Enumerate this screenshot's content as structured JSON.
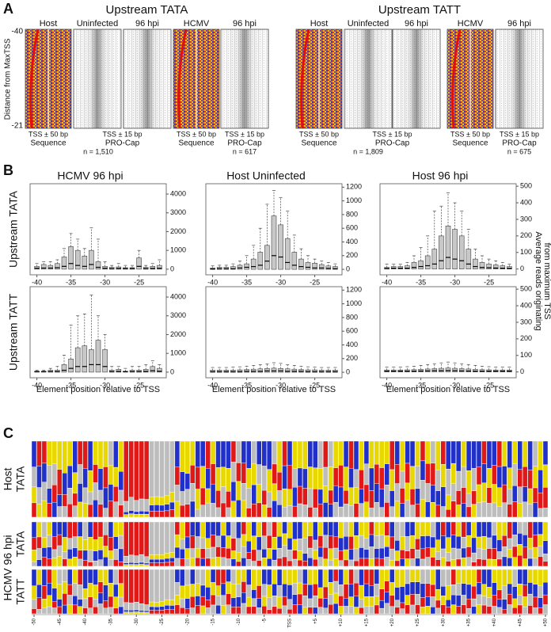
{
  "panel_a": {
    "label": "A",
    "yticks": [
      -40,
      -21
    ],
    "y_title": "Distance from MaxTSS",
    "seq_label": [
      "TSS ± 50 bp",
      "Sequence"
    ],
    "cap_label": [
      "TSS ± 15 bp",
      "PRO-Cap"
    ],
    "groups": [
      {
        "title": "Upstream TATA",
        "sets": [
          {
            "seq_header": "Host",
            "cap_headers": [
              "Uninfected",
              "96 hpi"
            ],
            "n": "n = 1,510"
          },
          {
            "seq_header": "HCMV",
            "cap_headers": [
              "96 hpi"
            ],
            "n": "n = 617"
          }
        ]
      },
      {
        "title": "Upstream TATT",
        "sets": [
          {
            "seq_header": "Host",
            "cap_headers": [
              "Uninfected",
              "96 hpi"
            ],
            "n": "n = 1,809"
          },
          {
            "seq_header": "HCMV",
            "cap_headers": [
              "96 hpi"
            ],
            "n": "n = 675"
          }
        ]
      }
    ]
  },
  "panel_b": {
    "label": "B",
    "row_labels": [
      "Upstream TATA",
      "Upstream TATT"
    ],
    "x_title": "Element position relative to TSS",
    "y_title": [
      "Average reads originating",
      "from maximum TSS"
    ]
  },
  "chart_data": [
    {
      "type": "box",
      "title": "HCMV 96 hpi",
      "color": "#c8c8c8",
      "x": [
        -40,
        -39,
        -38,
        -37,
        -36,
        -35,
        -34,
        -33,
        -32,
        -31,
        -30,
        -29,
        -28,
        -27,
        -26,
        -25,
        -24,
        -23,
        -22
      ],
      "q1": [
        0,
        0,
        0,
        0,
        0,
        0,
        0,
        0,
        0,
        0,
        0,
        0,
        0,
        0,
        0,
        0,
        0,
        0,
        0
      ],
      "median": [
        50,
        60,
        60,
        80,
        150,
        300,
        200,
        150,
        250,
        100,
        50,
        30,
        40,
        30,
        30,
        150,
        30,
        40,
        50
      ],
      "q3": [
        150,
        250,
        200,
        300,
        650,
        1200,
        1000,
        700,
        1000,
        400,
        150,
        100,
        120,
        80,
        80,
        600,
        100,
        150,
        200
      ],
      "upper": [
        300,
        400,
        400,
        500,
        1100,
        1900,
        1600,
        1100,
        2200,
        1600,
        400,
        200,
        300,
        200,
        200,
        1000,
        200,
        300,
        500
      ],
      "xlim": [
        -41,
        -21
      ],
      "xticks": [
        -40,
        -35,
        -30,
        -25
      ],
      "ylim": [
        -300,
        4550
      ],
      "yticks": [
        0,
        1000,
        2000,
        3000,
        4000
      ]
    },
    {
      "type": "box",
      "title": "Host Uninfected",
      "color": "#c8c8c8",
      "x": [
        -40,
        -39,
        -38,
        -37,
        -36,
        -35,
        -34,
        -33,
        -32,
        -31,
        -30,
        -29,
        -28,
        -27,
        -26,
        -25,
        -24,
        -23,
        -22
      ],
      "q1": [
        0,
        0,
        0,
        0,
        0,
        0,
        0,
        0,
        0,
        0,
        0,
        0,
        0,
        0,
        0,
        0,
        0,
        0,
        0
      ],
      "median": [
        5,
        10,
        10,
        10,
        20,
        30,
        40,
        60,
        120,
        200,
        180,
        100,
        60,
        40,
        30,
        20,
        20,
        15,
        10
      ],
      "q3": [
        20,
        30,
        30,
        40,
        60,
        80,
        150,
        250,
        350,
        780,
        650,
        450,
        250,
        150,
        100,
        90,
        70,
        50,
        40
      ],
      "upper": [
        50,
        60,
        60,
        80,
        120,
        200,
        350,
        600,
        950,
        1150,
        1050,
        850,
        500,
        300,
        200,
        150,
        120,
        100,
        80
      ],
      "xlim": [
        -41,
        -21
      ],
      "xticks": [
        -40,
        -35,
        -30,
        -25
      ],
      "ylim": [
        -80,
        1250
      ],
      "yticks": [
        0,
        200,
        400,
        600,
        800,
        1000,
        1200
      ]
    },
    {
      "type": "box",
      "title": "Host 96 hpi",
      "color": "#c8c8c8",
      "x": [
        -40,
        -39,
        -38,
        -37,
        -36,
        -35,
        -34,
        -33,
        -32,
        -31,
        -30,
        -29,
        -28,
        -27,
        -26,
        -25,
        -24,
        -23,
        -22
      ],
      "q1": [
        0,
        0,
        0,
        0,
        0,
        0,
        0,
        0,
        0,
        0,
        0,
        0,
        0,
        0,
        0,
        0,
        0,
        0,
        0
      ],
      "median": [
        3,
        5,
        5,
        5,
        10,
        15,
        20,
        30,
        50,
        70,
        60,
        50,
        30,
        15,
        10,
        8,
        6,
        5,
        4
      ],
      "q3": [
        10,
        15,
        15,
        20,
        40,
        50,
        80,
        120,
        200,
        260,
        240,
        200,
        120,
        60,
        40,
        30,
        25,
        20,
        15
      ],
      "upper": [
        30,
        30,
        30,
        40,
        80,
        130,
        200,
        350,
        380,
        460,
        400,
        350,
        240,
        120,
        80,
        60,
        50,
        40,
        30
      ],
      "xlim": [
        -41,
        -21
      ],
      "xticks": [
        -40,
        -35,
        -30,
        -25
      ],
      "ylim": [
        -35,
        515
      ],
      "yticks": [
        0,
        100,
        200,
        300,
        400,
        500
      ]
    },
    {
      "type": "box",
      "color": "#c8c8c8",
      "x": [
        -40,
        -39,
        -38,
        -37,
        -36,
        -35,
        -34,
        -33,
        -32,
        -31,
        -30,
        -29,
        -28,
        -27,
        -26,
        -25,
        -24,
        -23,
        -22
      ],
      "q1": [
        0,
        0,
        0,
        0,
        0,
        0,
        0,
        0,
        0,
        0,
        0,
        0,
        0,
        0,
        0,
        0,
        0,
        0,
        0
      ],
      "median": [
        20,
        20,
        30,
        30,
        100,
        200,
        300,
        300,
        400,
        400,
        300,
        30,
        40,
        20,
        30,
        30,
        40,
        80,
        50
      ],
      "q3": [
        50,
        50,
        100,
        100,
        400,
        700,
        1300,
        1400,
        1200,
        1700,
        1200,
        100,
        150,
        50,
        100,
        100,
        150,
        300,
        200
      ],
      "upper": [
        100,
        100,
        200,
        300,
        900,
        2500,
        3000,
        3100,
        4100,
        3000,
        2000,
        300,
        300,
        200,
        300,
        300,
        400,
        600,
        400
      ],
      "xlim": [
        -41,
        -21
      ],
      "xticks": [
        -40,
        -35,
        -30,
        -25
      ],
      "ylim": [
        -300,
        4550
      ],
      "yticks": [
        0,
        1000,
        2000,
        3000,
        4000
      ]
    },
    {
      "type": "box",
      "color": "#c8c8c8",
      "x": [
        -40,
        -39,
        -38,
        -37,
        -36,
        -35,
        -34,
        -33,
        -32,
        -31,
        -30,
        -29,
        -28,
        -27,
        -26,
        -25,
        -24,
        -23,
        -22
      ],
      "q1": [
        0,
        0,
        0,
        0,
        0,
        0,
        0,
        0,
        0,
        0,
        0,
        0,
        0,
        0,
        0,
        0,
        0,
        0,
        0
      ],
      "median": [
        10,
        10,
        10,
        10,
        10,
        15,
        15,
        15,
        20,
        20,
        20,
        15,
        15,
        15,
        10,
        10,
        10,
        10,
        10
      ],
      "q3": [
        30,
        30,
        30,
        30,
        35,
        40,
        45,
        50,
        55,
        60,
        55,
        50,
        45,
        40,
        35,
        35,
        30,
        30,
        30
      ],
      "upper": [
        70,
        70,
        70,
        75,
        80,
        90,
        100,
        110,
        120,
        140,
        130,
        110,
        100,
        90,
        80,
        75,
        70,
        70,
        70
      ],
      "xlim": [
        -41,
        -21
      ],
      "xticks": [
        -40,
        -35,
        -30,
        -25
      ],
      "ylim": [
        -80,
        1250
      ],
      "yticks": [
        0,
        200,
        400,
        600,
        800,
        1000,
        1200
      ]
    },
    {
      "type": "box",
      "color": "#c8c8c8",
      "x": [
        -40,
        -39,
        -38,
        -37,
        -36,
        -35,
        -34,
        -33,
        -32,
        -31,
        -30,
        -29,
        -28,
        -27,
        -26,
        -25,
        -24,
        -23,
        -22
      ],
      "q1": [
        0,
        0,
        0,
        0,
        0,
        0,
        0,
        0,
        0,
        0,
        0,
        0,
        0,
        0,
        0,
        0,
        0,
        0,
        0
      ],
      "median": [
        5,
        5,
        5,
        5,
        5,
        6,
        7,
        8,
        8,
        9,
        8,
        7,
        6,
        5,
        5,
        5,
        5,
        5,
        5
      ],
      "q3": [
        12,
        12,
        12,
        13,
        14,
        16,
        18,
        20,
        22,
        24,
        22,
        20,
        18,
        16,
        14,
        13,
        12,
        12,
        12
      ],
      "upper": [
        30,
        30,
        30,
        32,
        35,
        40,
        45,
        50,
        55,
        60,
        55,
        50,
        45,
        40,
        35,
        32,
        30,
        30,
        30
      ],
      "xlim": [
        -41,
        -21
      ],
      "xticks": [
        -40,
        -35,
        -30,
        -25
      ],
      "ylim": [
        -35,
        515
      ],
      "yticks": [
        0,
        100,
        200,
        300,
        400,
        500
      ]
    }
  ],
  "panel_c": {
    "label": "C",
    "group_label": "HCMV 96 hpi",
    "rows": [
      {
        "labels": [
          "Host",
          "TATA"
        ]
      },
      {
        "labels": [
          "TATA"
        ]
      },
      {
        "labels": [
          "TATT"
        ]
      }
    ],
    "xlim": [
      -50,
      50
    ],
    "xticks": [
      -50,
      -45,
      -40,
      -35,
      -30,
      -25,
      -20,
      -15,
      -10,
      -5,
      {
        "value": 0,
        "label": "TSS"
      },
      {
        "value": 5,
        "label": "+5"
      },
      {
        "value": 10,
        "label": "+10"
      },
      {
        "value": 15,
        "label": "+15"
      },
      {
        "value": 20,
        "label": "+20"
      },
      {
        "value": 25,
        "label": "+25"
      },
      {
        "value": 30,
        "label": "+30"
      },
      {
        "value": 35,
        "label": "+35"
      },
      {
        "value": 40,
        "label": "+40"
      },
      {
        "value": 45,
        "label": "+45"
      },
      {
        "value": 50,
        "label": "+50"
      }
    ]
  }
}
